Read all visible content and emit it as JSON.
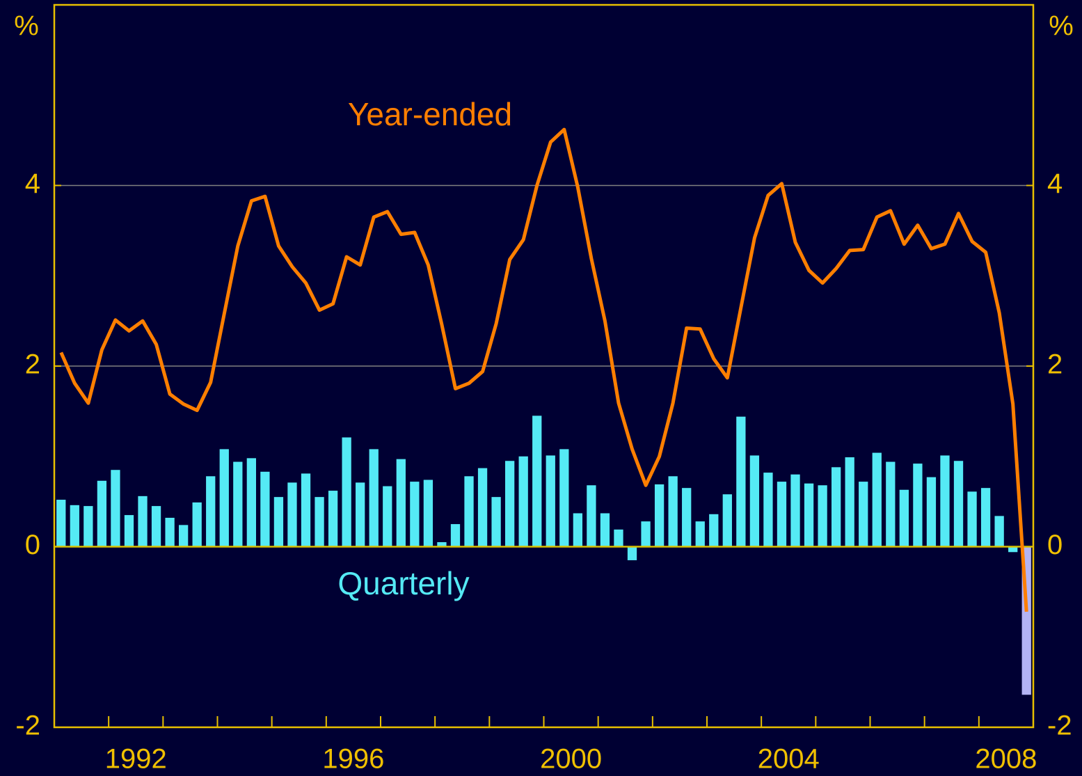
{
  "chart_data": {
    "type": "bar",
    "ylabel": "%",
    "y2label": "%",
    "categories": [
      null,
      null,
      null,
      null,
      "1992",
      null,
      null,
      null,
      null,
      null,
      null,
      null,
      null,
      null,
      null,
      null,
      null,
      null,
      null,
      null,
      "1996",
      null,
      null,
      null,
      null,
      null,
      null,
      null,
      null,
      null,
      null,
      null,
      null,
      null,
      null,
      null,
      "2000",
      null,
      null,
      null,
      null,
      null,
      null,
      null,
      null,
      null,
      null,
      null,
      null,
      null,
      null,
      null,
      "2004",
      null,
      null,
      null,
      null,
      null,
      null,
      null,
      null,
      null,
      null,
      null,
      null,
      null,
      null,
      null,
      "2008",
      null,
      null,
      null
    ],
    "series": [
      {
        "name": "Quarterly",
        "type": "bar",
        "color": "#55eaf5",
        "colors": [
          "#55eaf5",
          "#55eaf5",
          "#55eaf5",
          "#55eaf5",
          "#55eaf5",
          "#55eaf5",
          "#55eaf5",
          "#55eaf5",
          "#55eaf5",
          "#55eaf5",
          "#55eaf5",
          "#55eaf5",
          "#55eaf5",
          "#55eaf5",
          "#55eaf5",
          "#55eaf5",
          "#55eaf5",
          "#55eaf5",
          "#55eaf5",
          "#55eaf5",
          "#55eaf5",
          "#55eaf5",
          "#55eaf5",
          "#55eaf5",
          "#55eaf5",
          "#55eaf5",
          "#55eaf5",
          "#55eaf5",
          "#55eaf5",
          "#55eaf5",
          "#55eaf5",
          "#55eaf5",
          "#55eaf5",
          "#55eaf5",
          "#55eaf5",
          "#55eaf5",
          "#55eaf5",
          "#55eaf5",
          "#55eaf5",
          "#55eaf5",
          "#55eaf5",
          "#55eaf5",
          "#55eaf5",
          "#55eaf5",
          "#55eaf5",
          "#55eaf5",
          "#55eaf5",
          "#55eaf5",
          "#55eaf5",
          "#55eaf5",
          "#55eaf5",
          "#55eaf5",
          "#55eaf5",
          "#55eaf5",
          "#55eaf5",
          "#55eaf5",
          "#55eaf5",
          "#55eaf5",
          "#55eaf5",
          "#55eaf5",
          "#55eaf5",
          "#55eaf5",
          "#55eaf5",
          "#55eaf5",
          "#55eaf5",
          "#55eaf5",
          "#55eaf5",
          "#55eaf5",
          "#55eaf5",
          "#55eaf5",
          "#55eaf5",
          "#b4b4f4"
        ],
        "values": [
          0.52,
          0.46,
          0.45,
          0.73,
          0.85,
          0.35,
          0.56,
          0.45,
          0.32,
          0.24,
          0.49,
          0.78,
          1.08,
          0.94,
          0.98,
          0.83,
          0.55,
          0.71,
          0.81,
          0.55,
          0.62,
          1.21,
          0.71,
          1.08,
          0.67,
          0.97,
          0.72,
          0.74,
          0.05,
          0.25,
          0.78,
          0.87,
          0.55,
          0.95,
          1.0,
          1.45,
          1.01,
          1.08,
          0.37,
          0.68,
          0.37,
          0.19,
          -0.15,
          0.28,
          0.69,
          0.78,
          0.65,
          0.28,
          0.36,
          0.58,
          1.44,
          1.01,
          0.82,
          0.72,
          0.8,
          0.7,
          0.68,
          0.88,
          0.99,
          0.72,
          1.04,
          0.94,
          0.63,
          0.92,
          0.77,
          1.01,
          0.95,
          0.61,
          0.65,
          0.34,
          -0.06,
          -1.64
        ]
      },
      {
        "name": "Year-ended",
        "type": "line",
        "color": "#ff7f00",
        "values": [
          2.15,
          1.81,
          1.59,
          2.18,
          2.51,
          2.39,
          2.5,
          2.24,
          1.69,
          1.58,
          1.51,
          1.82,
          2.58,
          3.33,
          3.83,
          3.88,
          3.33,
          3.1,
          2.92,
          2.62,
          2.69,
          3.21,
          3.12,
          3.65,
          3.71,
          3.46,
          3.48,
          3.12,
          2.46,
          1.75,
          1.81,
          1.94,
          2.47,
          3.18,
          3.4,
          4.0,
          4.48,
          4.62,
          3.98,
          3.19,
          2.5,
          1.59,
          1.08,
          0.68,
          1.0,
          1.59,
          2.42,
          2.41,
          2.08,
          1.87,
          2.65,
          3.42,
          3.89,
          4.02,
          3.37,
          3.06,
          2.92,
          3.08,
          3.28,
          3.29,
          3.65,
          3.72,
          3.35,
          3.56,
          3.3,
          3.35,
          3.69,
          3.38,
          3.26,
          2.59,
          1.58,
          -0.72
        ]
      }
    ],
    "ylim": [
      -2,
      6
    ],
    "yticks": [
      -2,
      0,
      2,
      4
    ],
    "y2lim": [
      -2,
      6
    ],
    "y2ticks": [
      -2,
      0,
      2,
      4
    ],
    "grid": true,
    "grid_color": "#808080",
    "zero_line_color": "#d8c000",
    "axis_color": "#e8c000",
    "text_color": "#f0c000",
    "background": "#000033"
  }
}
